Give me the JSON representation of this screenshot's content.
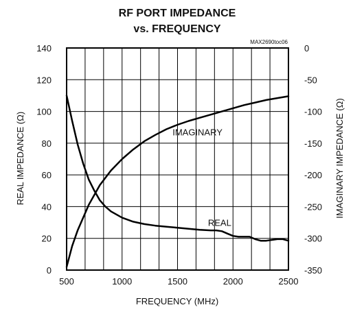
{
  "chart_data": {
    "type": "line",
    "title": [
      "RF PORT IMPEDANCE",
      "vs. FREQUENCY"
    ],
    "code": "MAX2690toc06",
    "xlabel": "FREQUENCY (MHz)",
    "ylabel_left": "REAL IMPEDANCE (Ω)",
    "ylabel_right": "IMAGINARY IMPEDANCE (Ω)",
    "xlim": [
      500,
      2500
    ],
    "ylim_left": [
      0,
      140
    ],
    "ylim_right": [
      -350,
      0
    ],
    "x_ticks": [
      500,
      1000,
      1500,
      2000,
      2500
    ],
    "x_tick_labels": [
      "500",
      "1000",
      "1500",
      "2000",
      "2500"
    ],
    "y_left_ticks": [
      0,
      20,
      40,
      60,
      80,
      100,
      120,
      140
    ],
    "y_left_tick_labels": [
      "0",
      "20",
      "40",
      "60",
      "80",
      "100",
      "120",
      "140"
    ],
    "y_right_ticks": [
      -350,
      -300,
      -250,
      -200,
      -150,
      -100,
      -50,
      0
    ],
    "y_right_tick_labels": [
      "-350",
      "-300",
      "-250",
      "-200",
      "-150",
      "-100",
      "-50",
      "0"
    ],
    "grid": true,
    "line_color": "#000000",
    "series": [
      {
        "name": "REAL",
        "axis": "left",
        "x": [
          500,
          550,
          600,
          650,
          700,
          750,
          800,
          850,
          900,
          1000,
          1100,
          1200,
          1300,
          1400,
          1500,
          1600,
          1700,
          1800,
          1850,
          1900,
          1950,
          2000,
          2050,
          2100,
          2150,
          2200,
          2250,
          2300,
          2350,
          2400,
          2450,
          2500
        ],
        "y": [
          110,
          94,
          79,
          67,
          57,
          50,
          44,
          40,
          37,
          33,
          30.5,
          29,
          28,
          27.3,
          26.7,
          26,
          25.4,
          25,
          25,
          24.5,
          23,
          21.5,
          21,
          21,
          21,
          19.5,
          18.5,
          18.5,
          19,
          19.5,
          19.5,
          18.5
        ]
      },
      {
        "name": "IMAGINARY",
        "axis": "right",
        "x": [
          500,
          550,
          600,
          700,
          800,
          900,
          1000,
          1100,
          1200,
          1300,
          1400,
          1500,
          1600,
          1700,
          1800,
          1900,
          2000,
          2100,
          2200,
          2300,
          2400,
          2500
        ],
        "y": [
          -345,
          -312,
          -287,
          -247,
          -216,
          -193,
          -175,
          -160,
          -147,
          -137,
          -128,
          -121,
          -115,
          -110,
          -105,
          -100,
          -95,
          -90,
          -86,
          -82,
          -79,
          -76
        ]
      }
    ],
    "annotations": [
      {
        "text": "IMAGINARY",
        "x": 1680,
        "y": 87,
        "axis": "left"
      },
      {
        "text": "REAL",
        "x": 1880,
        "y": 30,
        "axis": "left"
      }
    ]
  }
}
